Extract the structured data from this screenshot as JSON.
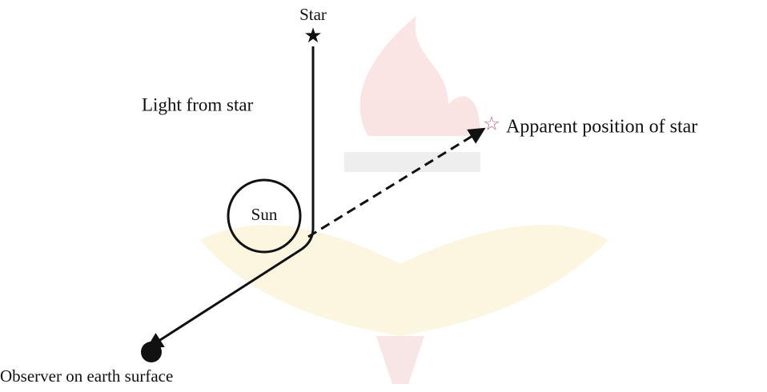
{
  "labels": {
    "star": "Star",
    "light": "Light from star",
    "apparent": "Apparent position of star",
    "sun": "Sun",
    "observer": "Observer on earth surface"
  }
}
